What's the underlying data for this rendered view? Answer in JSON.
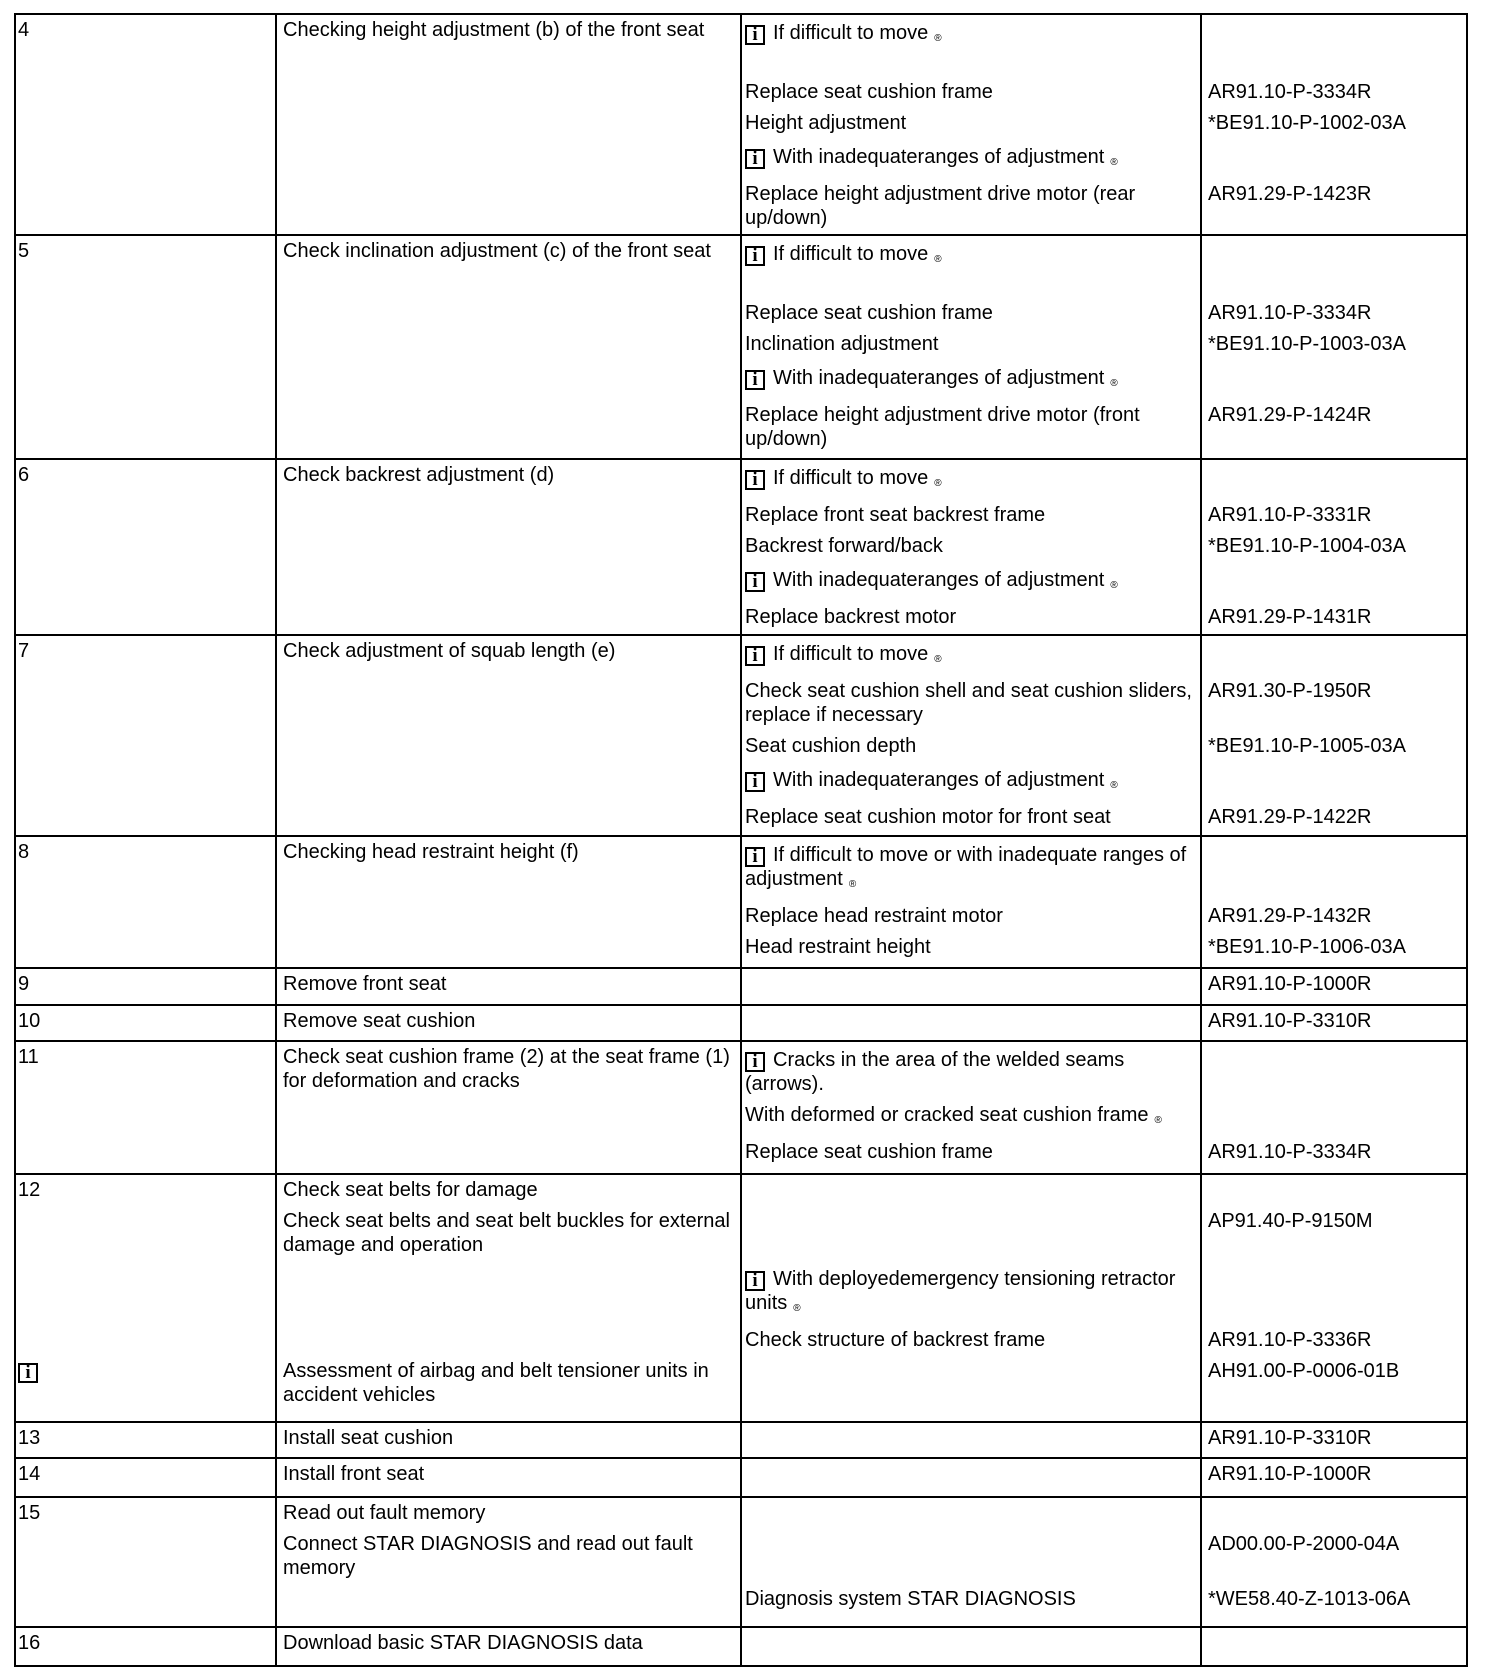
{
  "registered_mark": "®",
  "info_glyph": "i",
  "rows": [
    {
      "subs": [
        {
          "num": "4",
          "action": "Checking height adjustment (b) of the front seat",
          "note": "If difficult to   move",
          "note_info": true,
          "note_reg": true,
          "gap": true
        },
        {
          "note": "Replace seat cushion frame",
          "ref": "AR91.10-P-3334R"
        },
        {
          "note": "Height adjustment",
          "ref": "*BE91.10-P-1002-03A"
        },
        {
          "note": "With  inadequateranges of   adjustment",
          "note_info": true,
          "note_reg": true
        },
        {
          "note": "Replace height adjustment drive motor (rear up/down)",
          "ref": "AR91.29-P-1423R"
        }
      ]
    },
    {
      "subs": [
        {
          "num": "5",
          "action": "Check inclination adjustment (c) of the front seat",
          "note": "If difficult to   move",
          "note_info": true,
          "note_reg": true,
          "gap": true
        },
        {
          "note": "Replace seat cushion frame",
          "ref": "AR91.10-P-3334R"
        },
        {
          "note": "Inclination adjustment",
          "ref": "*BE91.10-P-1003-03A"
        },
        {
          "note": "With  inadequateranges of   adjustment",
          "note_info": true,
          "note_reg": true
        },
        {
          "note": "Replace height adjustment drive motor (front up/down)",
          "ref": "AR91.29-P-1424R"
        }
      ]
    },
    {
      "subs": [
        {
          "num": "6",
          "action": "Check backrest adjustment (d)",
          "note": "If difficult to   move",
          "note_info": true,
          "note_reg": true
        },
        {
          "note": "Replace front seat backrest frame",
          "ref": "AR91.10-P-3331R"
        },
        {
          "note": "Backrest forward/back",
          "ref": "*BE91.10-P-1004-03A"
        },
        {
          "note": "With  inadequateranges of   adjustment",
          "note_info": true,
          "note_reg": true
        },
        {
          "note": "Replace backrest motor",
          "ref": "AR91.29-P-1431R"
        }
      ]
    },
    {
      "subs": [
        {
          "num": "7",
          "action": "Check adjustment of squab length (e)",
          "note": "If difficult to   move",
          "note_info": true,
          "note_reg": true
        },
        {
          "note": "Check seat cushion shell and seat cushion sliders, replace if necessary",
          "ref": "AR91.30-P-1950R"
        },
        {
          "note": "Seat cushion depth",
          "ref": "*BE91.10-P-1005-03A"
        },
        {
          "note": "With  inadequateranges of   adjustment",
          "note_info": true,
          "note_reg": true
        },
        {
          "note": "Replace seat cushion motor for front seat",
          "ref": "AR91.29-P-1422R"
        }
      ]
    },
    {
      "subs": [
        {
          "num": "8",
          "action": "Checking head restraint height (f)",
          "note": "If difficult to move or with inadequate ranges of adjustment",
          "note_info": true,
          "note_reg": true
        },
        {
          "note": "Replace head restraint motor",
          "ref": "AR91.29-P-1432R"
        },
        {
          "note": "Head restraint height",
          "ref": "*BE91.10-P-1006-03A"
        }
      ]
    },
    {
      "subs": [
        {
          "num": "9",
          "action": "Remove front seat",
          "ref": "AR91.10-P-1000R"
        }
      ]
    },
    {
      "subs": [
        {
          "num": "10",
          "action": "Remove seat cushion",
          "ref": "AR91.10-P-3310R"
        }
      ]
    },
    {
      "subs": [
        {
          "num": "11",
          "action": "Check seat cushion frame (2) at the seat frame (1) for deformation and cracks",
          "note": "Cracks  in the area of the welded seams (arrows).",
          "note_info": true
        },
        {
          "note": "With deformed or cracked seat cushion frame",
          "note_reg": true
        },
        {
          "note": "Replace seat cushion frame",
          "ref": "AR91.10-P-3334R"
        }
      ]
    },
    {
      "subs": [
        {
          "num": "12",
          "action": "Check seat belts for damage"
        },
        {
          "action": "Check seat belts and seat belt buckles for external damage and operation",
          "ref": "AP91.40-P-9150M"
        },
        {
          "note": "With  deployedemergency tensioning retractor units",
          "note_info": true,
          "note_reg": true
        },
        {
          "note": "Check structure of backrest frame",
          "ref": "AR91.10-P-3336R"
        },
        {
          "num_info": true,
          "action": "Assessment of airbag and belt tensioner units in accident vehicles",
          "ref": "AH91.00-P-0006-01B"
        }
      ]
    },
    {
      "subs": [
        {
          "num": "13",
          "action": "Install seat cushion",
          "ref": "AR91.10-P-3310R"
        }
      ]
    },
    {
      "subs": [
        {
          "num": "14",
          "action": "Install front seat",
          "ref": "AR91.10-P-1000R"
        }
      ]
    },
    {
      "subs": [
        {
          "num": "15",
          "action": "Read out fault memory"
        },
        {
          "action": "Connect STAR DIAGNOSIS and read out fault memory",
          "ref": "AD00.00-P-2000-04A"
        },
        {
          "note": "Diagnosis system STAR DIAGNOSIS",
          "ref": "*WE58.40-Z-1013-06A"
        }
      ]
    },
    {
      "subs": [
        {
          "num": "16",
          "action": "Download basic STAR DIAGNOSIS data"
        }
      ]
    }
  ]
}
